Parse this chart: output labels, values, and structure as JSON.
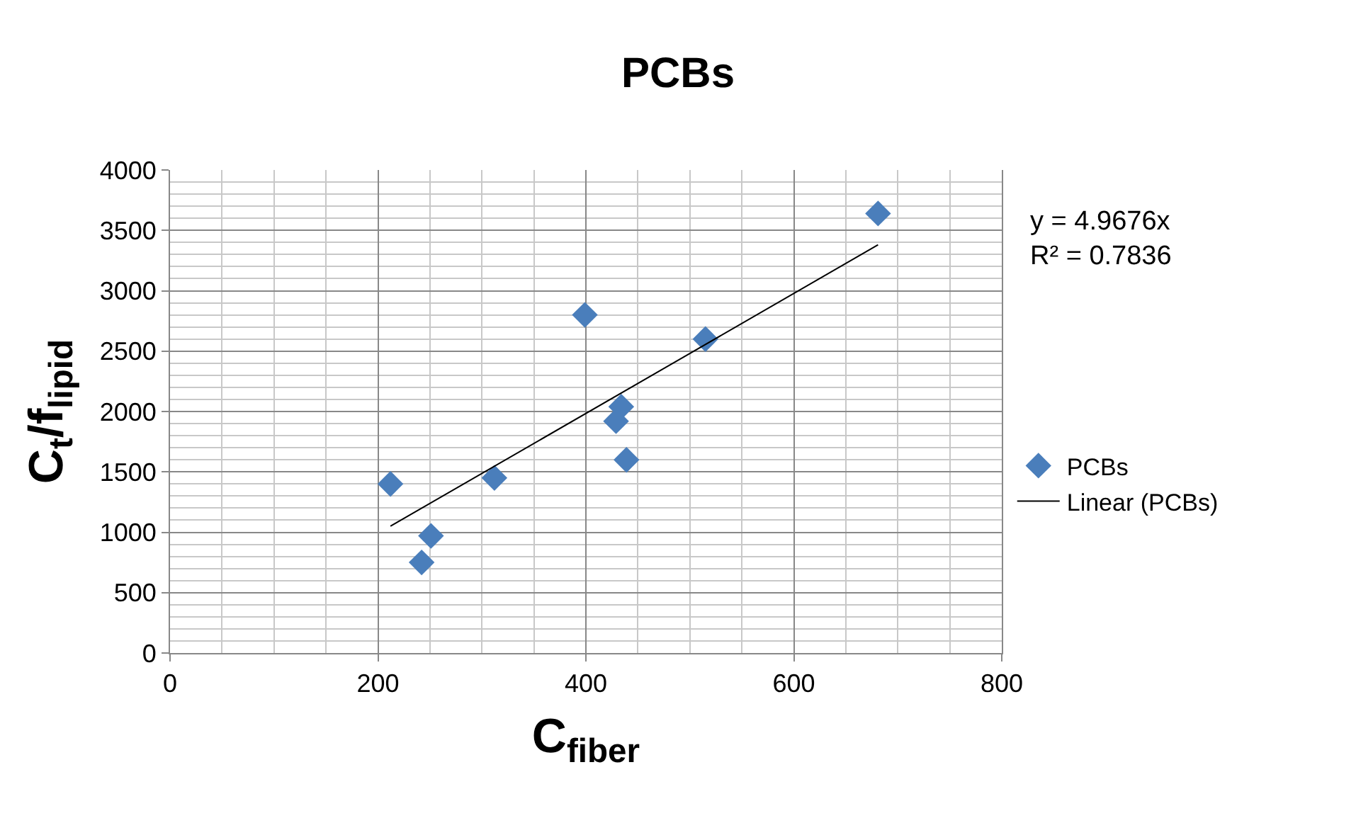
{
  "chart_data": {
    "type": "scatter",
    "title": "PCBs",
    "xlabel": "C$_{fiber}$",
    "ylabel": "C$_{t}$/f$_{lipid}$",
    "series": [
      {
        "name": "PCBs",
        "color": "#4a7ebb",
        "marker": "diamond",
        "x": [
          212,
          242,
          251,
          312,
          399,
          429,
          434,
          439,
          515,
          681
        ],
        "values": [
          1400,
          750,
          970,
          1450,
          2800,
          1920,
          2040,
          1600,
          2600,
          3640
        ]
      },
      {
        "name": "Linear (PCBs)",
        "type": "line",
        "color": "#000000",
        "marker": "none",
        "line_style": "solid",
        "x": [
          212,
          681
        ],
        "values": [
          1050,
          3380
        ]
      }
    ],
    "annotations": [
      "y = 4.9676x\nR² = 0.7836"
    ],
    "xlim": [
      0,
      800
    ],
    "xticks": [
      0,
      200,
      400,
      600,
      800
    ],
    "ylim": [
      0,
      4000
    ],
    "yticks": [
      0,
      500,
      1000,
      1500,
      2000,
      2500,
      3000,
      3500,
      4000
    ],
    "grid": true,
    "legend": "right"
  }
}
